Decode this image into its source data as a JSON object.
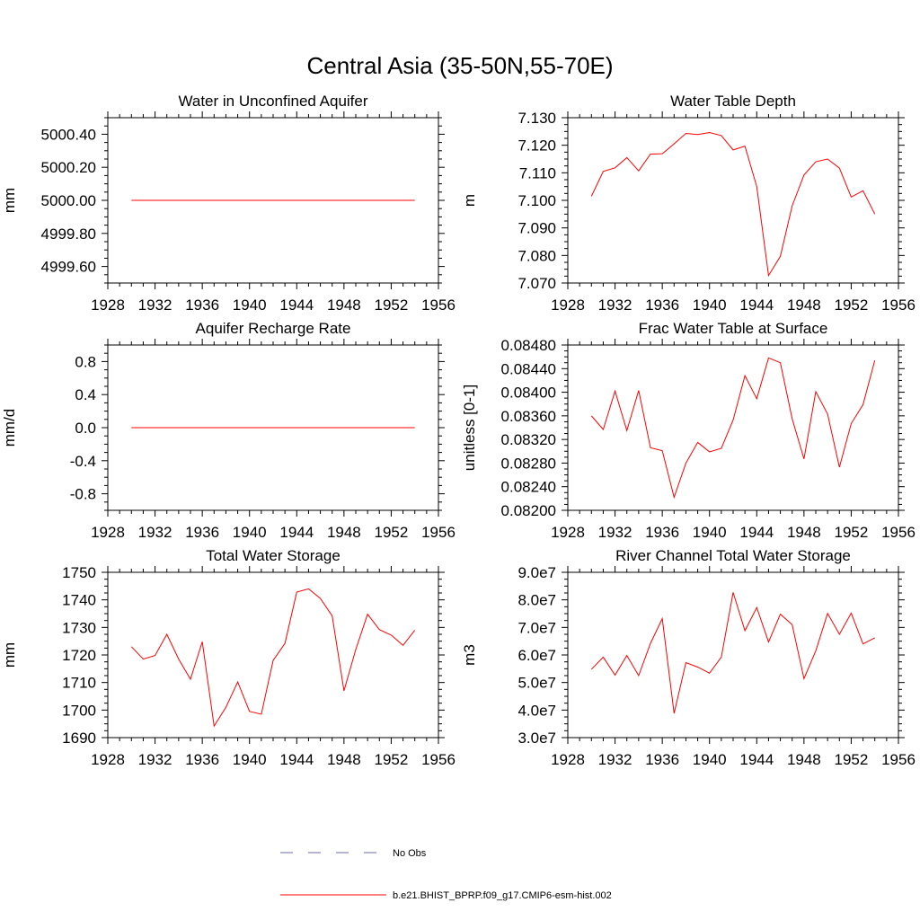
{
  "figure_title": "Central Asia (35-50N,55-70E)",
  "colors": {
    "model": "#ff0000",
    "obs": "#6a6aaa"
  },
  "legend": {
    "obs_label": "No Obs",
    "model_label": "b.e21.BHIST_BPRP.f09_g17.CMIP6-esm-hist.002"
  },
  "chart_data": [
    {
      "type": "line",
      "title": "Water in Unconfined Aquifer",
      "ylabel": "mm",
      "xlim": [
        1928,
        1956
      ],
      "ylim": [
        4999.5,
        5000.5
      ],
      "xticks": [
        1928,
        1932,
        1936,
        1940,
        1944,
        1948,
        1952,
        1956
      ],
      "xtick_labels": [
        "1928",
        "1932",
        "1936",
        "1940",
        "1944",
        "1948",
        "1952",
        "1956"
      ],
      "yticks": [
        4999.6,
        4999.8,
        5000.0,
        5000.2,
        5000.4
      ],
      "ytick_labels": [
        "4999.60",
        "4999.80",
        "5000.00",
        "5000.20",
        "5000.40"
      ],
      "x": [
        1930,
        1931,
        1932,
        1933,
        1934,
        1935,
        1936,
        1937,
        1938,
        1939,
        1940,
        1941,
        1942,
        1943,
        1944,
        1945,
        1946,
        1947,
        1948,
        1949,
        1950,
        1951,
        1952,
        1953,
        1954
      ],
      "series": [
        {
          "values": [
            5000,
            5000,
            5000,
            5000,
            5000,
            5000,
            5000,
            5000,
            5000,
            5000,
            5000,
            5000,
            5000,
            5000,
            5000,
            5000,
            5000,
            5000,
            5000,
            5000,
            5000,
            5000,
            5000,
            5000,
            5000
          ]
        }
      ]
    },
    {
      "type": "line",
      "title": "Water Table Depth",
      "ylabel": "m",
      "xlim": [
        1928,
        1956
      ],
      "ylim": [
        7.07,
        7.13
      ],
      "xticks": [
        1928,
        1932,
        1936,
        1940,
        1944,
        1948,
        1952,
        1956
      ],
      "xtick_labels": [
        "1928",
        "1932",
        "1936",
        "1940",
        "1944",
        "1948",
        "1952",
        "1956"
      ],
      "yticks": [
        7.07,
        7.08,
        7.09,
        7.1,
        7.11,
        7.12,
        7.13
      ],
      "ytick_labels": [
        "7.070",
        "7.080",
        "7.090",
        "7.100",
        "7.110",
        "7.120",
        "7.130"
      ],
      "x": [
        1930,
        1931,
        1932,
        1933,
        1934,
        1935,
        1936,
        1937,
        1938,
        1939,
        1940,
        1941,
        1942,
        1943,
        1944,
        1945,
        1946,
        1947,
        1948,
        1949,
        1950,
        1951,
        1952,
        1953,
        1954
      ],
      "series": [
        {
          "values": [
            7.1015,
            7.1105,
            7.1118,
            7.1155,
            7.1107,
            7.1168,
            7.1169,
            7.1205,
            7.1243,
            7.1239,
            7.1246,
            7.1235,
            7.1183,
            7.1197,
            7.105,
            7.0727,
            7.0797,
            7.098,
            7.1092,
            7.114,
            7.115,
            7.1117,
            7.1012,
            7.1035,
            7.095
          ]
        }
      ]
    },
    {
      "type": "line",
      "title": "Aquifer Recharge Rate",
      "ylabel": "mm/d",
      "xlim": [
        1928,
        1956
      ],
      "ylim": [
        -1.0,
        1.0
      ],
      "xticks": [
        1928,
        1932,
        1936,
        1940,
        1944,
        1948,
        1952,
        1956
      ],
      "xtick_labels": [
        "1928",
        "1932",
        "1936",
        "1940",
        "1944",
        "1948",
        "1952",
        "1956"
      ],
      "yticks": [
        -0.8,
        -0.4,
        0.0,
        0.4,
        0.8
      ],
      "ytick_labels": [
        "-0.8",
        "-0.4",
        "0.0",
        "0.4",
        "0.8"
      ],
      "x": [
        1930,
        1931,
        1932,
        1933,
        1934,
        1935,
        1936,
        1937,
        1938,
        1939,
        1940,
        1941,
        1942,
        1943,
        1944,
        1945,
        1946,
        1947,
        1948,
        1949,
        1950,
        1951,
        1952,
        1953,
        1954
      ],
      "series": [
        {
          "values": [
            0,
            0,
            0,
            0,
            0,
            0,
            0,
            0,
            0,
            0,
            0,
            0,
            0,
            0,
            0,
            0,
            0,
            0,
            0,
            0,
            0,
            0,
            0,
            0,
            0
          ]
        }
      ]
    },
    {
      "type": "line",
      "title": "Frac Water Table at Surface",
      "ylabel": "unitless [0-1]",
      "xlim": [
        1928,
        1956
      ],
      "ylim": [
        0.082,
        0.0848
      ],
      "xticks": [
        1928,
        1932,
        1936,
        1940,
        1944,
        1948,
        1952,
        1956
      ],
      "xtick_labels": [
        "1928",
        "1932",
        "1936",
        "1940",
        "1944",
        "1948",
        "1952",
        "1956"
      ],
      "yticks": [
        0.082,
        0.0824,
        0.0828,
        0.0832,
        0.0836,
        0.084,
        0.0844,
        0.0848
      ],
      "ytick_labels": [
        "0.08200",
        "0.08240",
        "0.08280",
        "0.08320",
        "0.08360",
        "0.08400",
        "0.08440",
        "0.08480"
      ],
      "x": [
        1930,
        1931,
        1932,
        1933,
        1934,
        1935,
        1936,
        1937,
        1938,
        1939,
        1940,
        1941,
        1942,
        1943,
        1944,
        1945,
        1946,
        1947,
        1948,
        1949,
        1950,
        1951,
        1952,
        1953,
        1954
      ],
      "series": [
        {
          "values": [
            0.0836,
            0.08337,
            0.08402,
            0.08335,
            0.08403,
            0.08306,
            0.08301,
            0.08222,
            0.0828,
            0.08315,
            0.08299,
            0.08305,
            0.08353,
            0.08428,
            0.08389,
            0.08458,
            0.0845,
            0.08355,
            0.08287,
            0.08401,
            0.08363,
            0.08273,
            0.08347,
            0.08379,
            0.08454
          ]
        }
      ]
    },
    {
      "type": "line",
      "title": "Total Water Storage",
      "ylabel": "mm",
      "xlim": [
        1928,
        1956
      ],
      "ylim": [
        1690,
        1750
      ],
      "xticks": [
        1928,
        1932,
        1936,
        1940,
        1944,
        1948,
        1952,
        1956
      ],
      "xtick_labels": [
        "1928",
        "1932",
        "1936",
        "1940",
        "1944",
        "1948",
        "1952",
        "1956"
      ],
      "yticks": [
        1690,
        1700,
        1710,
        1720,
        1730,
        1740,
        1750
      ],
      "ytick_labels": [
        "1690",
        "1700",
        "1710",
        "1720",
        "1730",
        "1740",
        "1750"
      ],
      "x": [
        1930,
        1931,
        1932,
        1933,
        1934,
        1935,
        1936,
        1937,
        1938,
        1939,
        1940,
        1941,
        1942,
        1943,
        1944,
        1945,
        1946,
        1947,
        1948,
        1949,
        1950,
        1951,
        1952,
        1953,
        1954
      ],
      "series": [
        {
          "values": [
            1723.0,
            1718.5,
            1719.8,
            1727.5,
            1718.5,
            1711.2,
            1724.8,
            1694.2,
            1701.0,
            1710.2,
            1699.5,
            1698.5,
            1718.0,
            1724.2,
            1742.8,
            1744.0,
            1740.5,
            1734.2,
            1707.0,
            1722.0,
            1734.8,
            1729.2,
            1727.2,
            1723.5,
            1729.0
          ]
        }
      ]
    },
    {
      "type": "line",
      "title": "River Channel Total Water Storage",
      "ylabel": "m3",
      "xlim": [
        1928,
        1956
      ],
      "ylim": [
        30000000,
        90000000
      ],
      "xticks": [
        1928,
        1932,
        1936,
        1940,
        1944,
        1948,
        1952,
        1956
      ],
      "xtick_labels": [
        "1928",
        "1932",
        "1936",
        "1940",
        "1944",
        "1948",
        "1952",
        "1956"
      ],
      "yticks": [
        30000000,
        40000000,
        50000000,
        60000000,
        70000000,
        80000000,
        90000000
      ],
      "ytick_labels": [
        "3.0e7",
        "4.0e7",
        "5.0e7",
        "6.0e7",
        "7.0e7",
        "8.0e7",
        "9.0e7"
      ],
      "x": [
        1930,
        1931,
        1932,
        1933,
        1934,
        1935,
        1936,
        1937,
        1938,
        1939,
        1940,
        1941,
        1942,
        1943,
        1944,
        1945,
        1946,
        1947,
        1948,
        1949,
        1950,
        1951,
        1952,
        1953,
        1954
      ],
      "series": [
        {
          "values": [
            54800000,
            59200000,
            52700000,
            59800000,
            52500000,
            64200000,
            73200000,
            38800000,
            57200000,
            55600000,
            53400000,
            59200000,
            82700000,
            68800000,
            77200000,
            64700000,
            74800000,
            71000000,
            51400000,
            61500000,
            75100000,
            67500000,
            75200000,
            64000000,
            66200000
          ]
        }
      ]
    }
  ]
}
